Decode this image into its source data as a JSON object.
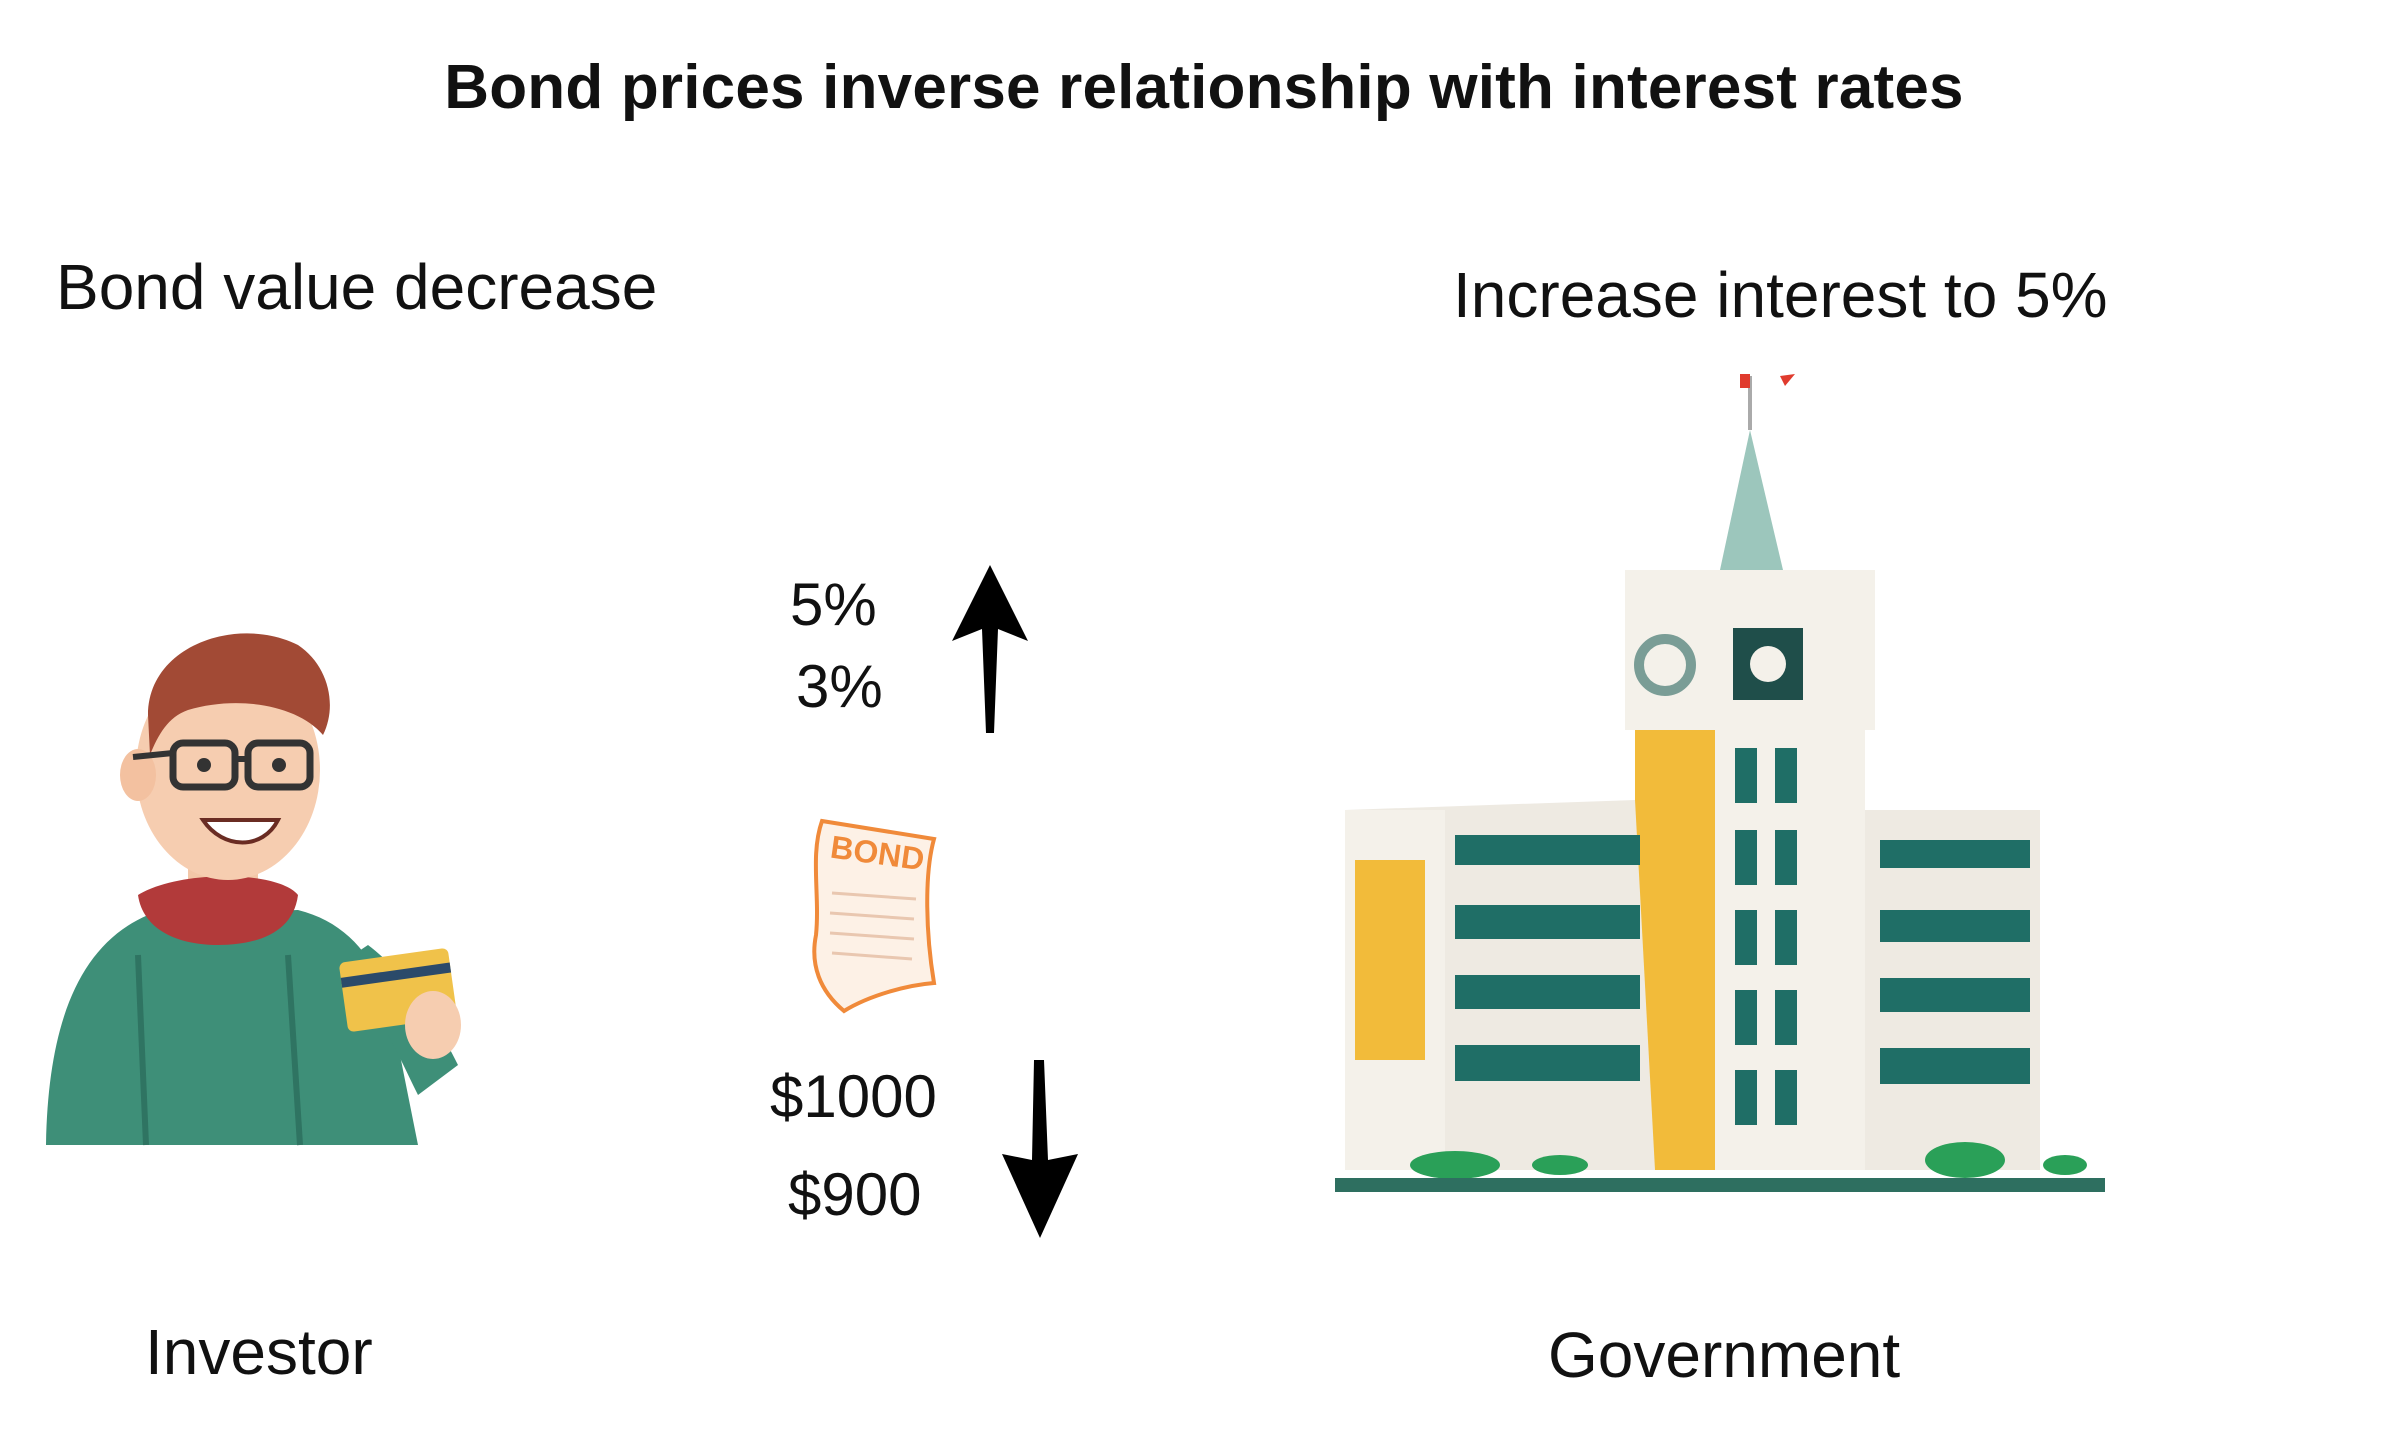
{
  "title": "Bond prices inverse relationship with interest rates",
  "investor": {
    "header": "Bond value decrease",
    "name": "Investor",
    "icon": "investor-holding-card-illustration"
  },
  "government": {
    "header": "Increase interest to 5%",
    "name": "Government",
    "icon": "government-building-illustration"
  },
  "interest": {
    "new_rate": "5%",
    "old_rate": "3%",
    "direction": "up"
  },
  "bond": {
    "label": "BOND",
    "icon": "bond-document-icon"
  },
  "price": {
    "old_price": "$1000",
    "new_price": "$900",
    "direction": "down"
  },
  "colors": {
    "sweater": "#3e8f78",
    "scarf": "#b23a3a",
    "card": "#f0c24a",
    "building_teal": "#1f6e66",
    "building_yellow": "#f2bb3a",
    "bond_orange": "#f08a3a"
  }
}
